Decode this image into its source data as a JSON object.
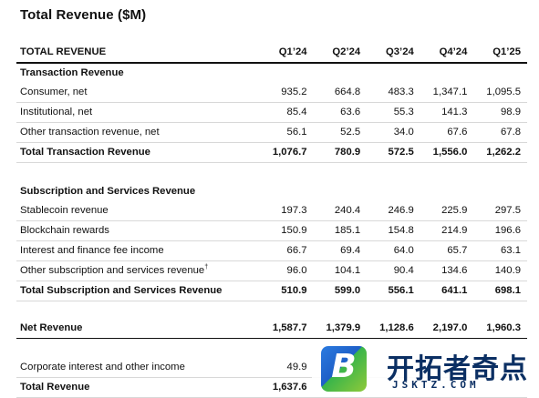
{
  "title": "Total Revenue ($M)",
  "table": {
    "header": [
      "TOTAL REVENUE",
      "Q1’24",
      "Q2’24",
      "Q3’24",
      "Q4’24",
      "Q1’25"
    ],
    "rows": [
      {
        "label": "Transaction Revenue",
        "values": [
          "",
          "",
          "",
          "",
          ""
        ]
      },
      {
        "label": "Consumer, net",
        "values": [
          "935.2",
          "664.8",
          "483.3",
          "1,347.1",
          "1,095.5"
        ]
      },
      {
        "label": "Institutional, net",
        "values": [
          "85.4",
          "63.6",
          "55.3",
          "141.3",
          "98.9"
        ]
      },
      {
        "label": "Other transaction revenue, net",
        "values": [
          "56.1",
          "52.5",
          "34.0",
          "67.6",
          "67.8"
        ]
      },
      {
        "label": "Total Transaction Revenue",
        "values": [
          "1,076.7",
          "780.9",
          "572.5",
          "1,556.0",
          "1,262.2"
        ]
      },
      {
        "label": "Subscription and Services Revenue",
        "values": [
          "",
          "",
          "",
          "",
          ""
        ]
      },
      {
        "label": "Stablecoin revenue",
        "values": [
          "197.3",
          "240.4",
          "246.9",
          "225.9",
          "297.5"
        ]
      },
      {
        "label": "Blockchain rewards",
        "values": [
          "150.9",
          "185.1",
          "154.8",
          "214.9",
          "196.6"
        ]
      },
      {
        "label": "Interest and finance fee income",
        "values": [
          "66.7",
          "69.4",
          "64.0",
          "65.7",
          "63.1"
        ]
      },
      {
        "label": "Other subscription and services revenue",
        "footnote": "†",
        "values": [
          "96.0",
          "104.1",
          "90.4",
          "134.6",
          "140.9"
        ]
      },
      {
        "label": "Total Subscription and Services Revenue",
        "values": [
          "510.9",
          "599.0",
          "556.1",
          "641.1",
          "698.1"
        ]
      },
      {
        "label": "Net Revenue",
        "values": [
          "1,587.7",
          "1,379.9",
          "1,128.6",
          "2,197.0",
          "1,960.3"
        ]
      },
      {
        "label": "Corporate interest and other income",
        "values": [
          "49.9",
          "",
          "",
          "",
          ""
        ]
      },
      {
        "label": "Total Revenue",
        "values": [
          "1,637.6",
          "",
          "",
          "",
          ""
        ]
      }
    ]
  },
  "watermark": {
    "badge": "B",
    "text": "开拓者奇点",
    "url": "JSKTZ.COM",
    "colors": {
      "blue": "#2b7be0",
      "green": "#39b54a",
      "text": "#0b2f63"
    }
  }
}
